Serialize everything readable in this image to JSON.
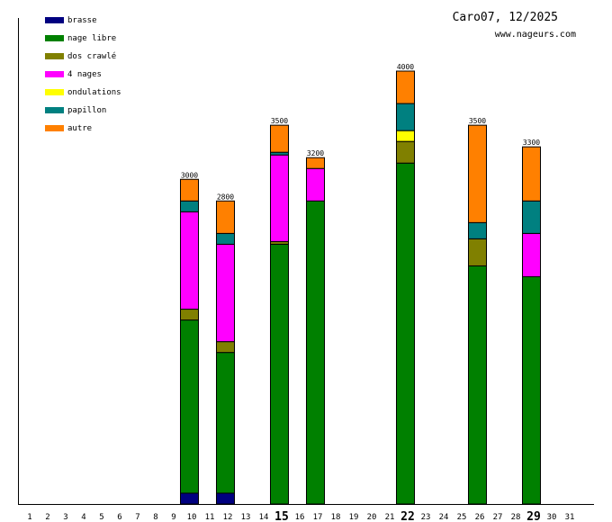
{
  "chart_data": {
    "type": "bar",
    "stacked": true,
    "title": "Caro07, 12/2025",
    "subtitle": "www.nageurs.com",
    "xlabel": "",
    "ylabel": "",
    "ylim": [
      0,
      4000
    ],
    "grid": false,
    "legend_position": "top-left",
    "categories": [
      "1",
      "2",
      "3",
      "4",
      "5",
      "6",
      "7",
      "8",
      "9",
      "10",
      "11",
      "12",
      "13",
      "14",
      "15",
      "16",
      "17",
      "18",
      "19",
      "20",
      "21",
      "22",
      "23",
      "24",
      "25",
      "26",
      "27",
      "28",
      "29",
      "30",
      "31"
    ],
    "highlighted_categories": [
      "15",
      "22",
      "29"
    ],
    "series": [
      {
        "name": "brasse",
        "color": "#000080",
        "values": {
          "10": 100,
          "12": 100
        }
      },
      {
        "name": "nage libre",
        "color": "#008000",
        "values": {
          "10": 1600,
          "12": 1300,
          "15": 2400,
          "17": 2800,
          "22": 3150,
          "26": 2200,
          "29": 2100
        }
      },
      {
        "name": "dos crawlé",
        "color": "#808000",
        "values": {
          "10": 100,
          "12": 100,
          "15": 25,
          "22": 200,
          "26": 250
        }
      },
      {
        "name": "4 nages",
        "color": "#ff00ff",
        "values": {
          "10": 900,
          "12": 900,
          "15": 800,
          "17": 300,
          "29": 400
        }
      },
      {
        "name": "ondulations",
        "color": "#ffff00",
        "values": {
          "22": 100
        }
      },
      {
        "name": "papillon",
        "color": "#008080",
        "values": {
          "10": 100,
          "12": 100,
          "15": 25,
          "22": 250,
          "26": 150,
          "29": 300
        }
      },
      {
        "name": "autre",
        "color": "#ff8000",
        "values": {
          "10": 200,
          "12": 300,
          "15": 250,
          "17": 100,
          "22": 300,
          "26": 900,
          "29": 500
        }
      }
    ],
    "totals": {
      "10": "3000",
      "12": "2800",
      "15": "3500",
      "17": "3200",
      "22": "4000",
      "26": "3500",
      "29": "3300"
    }
  }
}
